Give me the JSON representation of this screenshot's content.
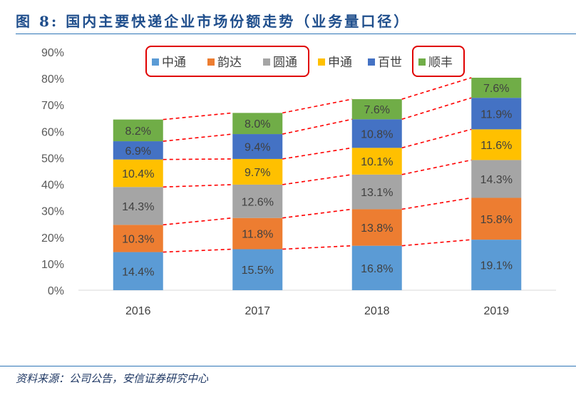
{
  "title": "图 8: 国内主要快递企业市场份额走势（业务量口径）",
  "source": "资料来源：公司公告，安信证券研究中心",
  "chart_data": {
    "type": "bar",
    "stacked": true,
    "title": "国内主要快递企业市场份额走势（业务量口径）",
    "xlabel": "",
    "ylabel": "",
    "categories": [
      "2016",
      "2017",
      "2018",
      "2019"
    ],
    "series": [
      {
        "name": "中通",
        "color": "#5B9BD5",
        "values": [
          14.4,
          15.5,
          16.8,
          19.1
        ]
      },
      {
        "name": "韵达",
        "color": "#ED7D31",
        "values": [
          10.3,
          11.8,
          13.8,
          15.8
        ]
      },
      {
        "name": "圆通",
        "color": "#A5A5A5",
        "values": [
          14.3,
          12.6,
          13.1,
          14.3
        ]
      },
      {
        "name": "申通",
        "color": "#FFC000",
        "values": [
          10.4,
          9.7,
          10.1,
          11.6
        ]
      },
      {
        "name": "百世",
        "color": "#4472C4",
        "values": [
          6.9,
          9.4,
          10.8,
          11.9
        ]
      },
      {
        "name": "顺丰",
        "color": "#70AD47",
        "values": [
          8.2,
          8.0,
          7.6,
          7.6
        ]
      }
    ],
    "value_suffix": "%",
    "ylim": [
      0,
      90
    ],
    "yticks": [
      0,
      10,
      20,
      30,
      40,
      50,
      60,
      70,
      80,
      90
    ],
    "ytick_labels": [
      "0%",
      "10%",
      "20%",
      "30%",
      "40%",
      "50%",
      "60%",
      "70%",
      "80%",
      "90%"
    ],
    "grid": false,
    "legend_position": "top",
    "legend_highlight_groups": [
      [
        0,
        1,
        2
      ],
      [
        5
      ]
    ],
    "highlight_color": "#E00000",
    "connector_color": "#FF0000"
  }
}
